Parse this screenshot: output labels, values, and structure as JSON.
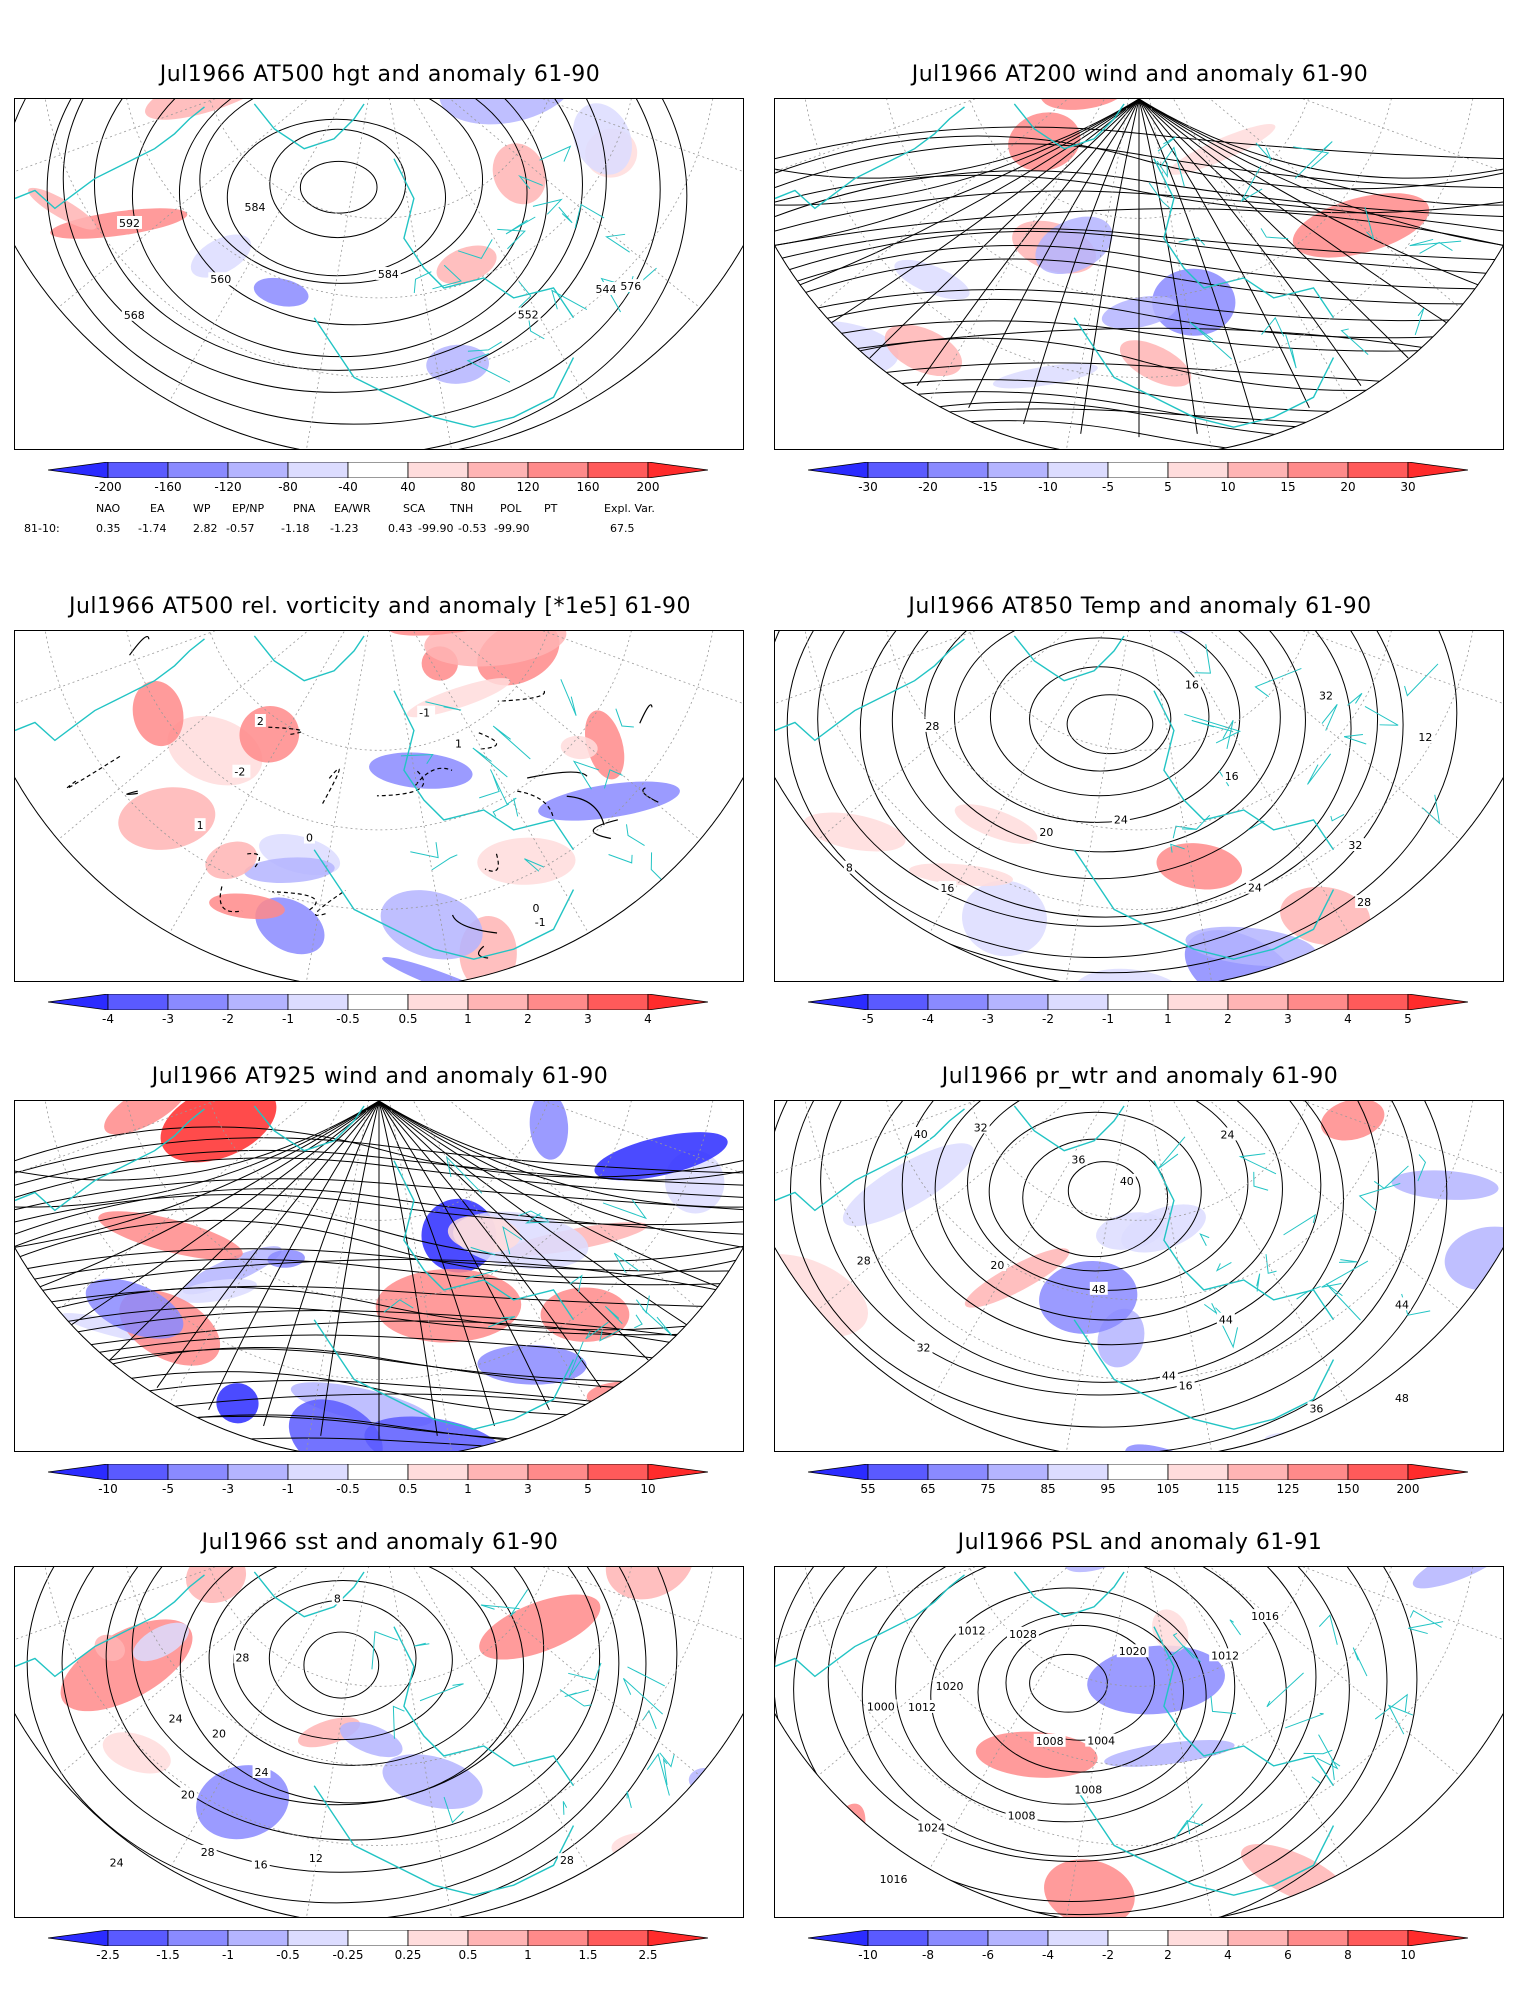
{
  "panels": [
    {
      "id": "p1",
      "title": "Jul1966 AT500 hgt and anomaly 61-90",
      "ticks": [
        "-200",
        "-160",
        "-120",
        "-80",
        "-40",
        "40",
        "80",
        "120",
        "160",
        "200"
      ],
      "contour_labels": [
        "544",
        "552",
        "560",
        "568",
        "576",
        "584",
        "584",
        "592"
      ]
    },
    {
      "id": "p2",
      "title": "Jul1966 AT200 wind and anomaly 61-90",
      "ticks": [
        "-30",
        "-20",
        "-15",
        "-10",
        "-5",
        "5",
        "10",
        "15",
        "20",
        "30"
      ],
      "contour_labels": []
    },
    {
      "id": "p3",
      "title": "Jul1966 AT500 rel. vorticity and anomaly [*1e5] 61-90",
      "ticks": [
        "-4",
        "-3",
        "-2",
        "-1",
        "-0.5",
        "0.5",
        "1",
        "2",
        "3",
        "4"
      ],
      "contour_labels": [
        "0",
        "-1",
        "1",
        "-2",
        "2",
        "-1",
        "1",
        "0"
      ]
    },
    {
      "id": "p4",
      "title": "Jul1966 AT850 Temp and anomaly 61-90",
      "ticks": [
        "-5",
        "-4",
        "-3",
        "-2",
        "-1",
        "1",
        "2",
        "3",
        "4",
        "5"
      ],
      "contour_labels": [
        "16",
        "12",
        "8",
        "24",
        "28",
        "32",
        "20",
        "16",
        "24",
        "28",
        "32",
        "16"
      ]
    },
    {
      "id": "p5",
      "title": "Jul1966 AT925 wind and anomaly 61-90",
      "ticks": [
        "-10",
        "-5",
        "-3",
        "-1",
        "-0.5",
        "0.5",
        "1",
        "3",
        "5",
        "10"
      ],
      "contour_labels": []
    },
    {
      "id": "p6",
      "title": "Jul1966 pr_wtr and anomaly 61-90",
      "ticks": [
        "55",
        "65",
        "75",
        "85",
        "95",
        "105",
        "115",
        "125",
        "150",
        "200"
      ],
      "contour_labels": [
        "36",
        "40",
        "44",
        "48",
        "24",
        "16",
        "32",
        "28",
        "20",
        "32",
        "44",
        "48",
        "40",
        "36",
        "44"
      ]
    },
    {
      "id": "p7",
      "title": "Jul1966 sst and anomaly 61-90",
      "ticks": [
        "-2.5",
        "-1.5",
        "-1",
        "-0.5",
        "-0.25",
        "0.25",
        "0.5",
        "1",
        "1.5",
        "2.5"
      ],
      "contour_labels": [
        "24",
        "28",
        "28",
        "16",
        "12",
        "8",
        "20",
        "20",
        "24",
        "28",
        "24"
      ]
    },
    {
      "id": "p8",
      "title": "Jul1966 PSL and anomaly 61-91",
      "ticks": [
        "-10",
        "-8",
        "-6",
        "-4",
        "-2",
        "2",
        "4",
        "6",
        "8",
        "10"
      ],
      "contour_labels": [
        "1012",
        "1008",
        "1016",
        "1020",
        "1024",
        "1028",
        "1012",
        "1004",
        "1000",
        "1008",
        "1020",
        "1016",
        "1008",
        "1012"
      ]
    }
  ],
  "teleconnections": {
    "headers": [
      "NAO",
      "EA",
      "WP",
      "EP/NP",
      "PNA",
      "EA/WR",
      "SCA",
      "TNH",
      "POL",
      "PT",
      "Expl. Var."
    ],
    "row_label": "81-10:",
    "values": [
      "0.35",
      "-1.74",
      "2.82",
      "-0.57",
      "-1.18",
      "-1.23",
      "0.43",
      "-99.90",
      "-0.53",
      "-99.90",
      "67.5"
    ]
  },
  "colors": {
    "coast": "#22c4c4",
    "blue_scale": [
      "#2b2bff",
      "#5a5aff",
      "#8a8aff",
      "#b4b4ff",
      "#dcdcff"
    ],
    "red_scale": [
      "#ffdcdc",
      "#ffb4b4",
      "#ff8a8a",
      "#ff5a5a",
      "#ff2b2b"
    ]
  }
}
